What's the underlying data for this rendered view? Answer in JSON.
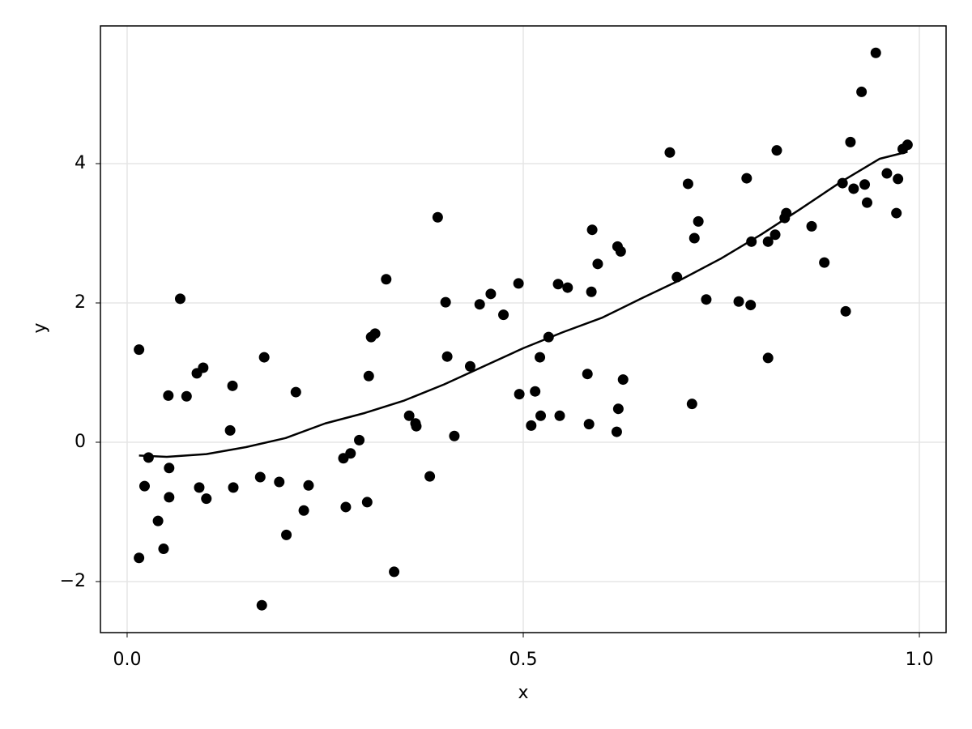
{
  "chart_data": {
    "type": "scatter",
    "xlabel": "x",
    "ylabel": "y",
    "grid": true,
    "xlim": [
      -0.0337,
      1.0337
    ],
    "ylim": [
      -2.733,
      5.977
    ],
    "xticks": [
      {
        "value": 0,
        "label": "0.0"
      },
      {
        "value": 0.5,
        "label": "0.5"
      },
      {
        "value": 1,
        "label": "1.0"
      }
    ],
    "yticks": [
      {
        "value": -2,
        "label": "−2"
      },
      0,
      2,
      4
    ],
    "series": [
      {
        "type": "scatter",
        "color": "#000000",
        "x": [
          0.015,
          0.015,
          0.022,
          0.027,
          0.039,
          0.046,
          0.052,
          0.053,
          0.053,
          0.067,
          0.075,
          0.088,
          0.091,
          0.096,
          0.1,
          0.13,
          0.133,
          0.134,
          0.168,
          0.17,
          0.173,
          0.192,
          0.201,
          0.213,
          0.223,
          0.229,
          0.273,
          0.276,
          0.282,
          0.293,
          0.303,
          0.305,
          0.308,
          0.313,
          0.327,
          0.337,
          0.356,
          0.364,
          0.365,
          0.382,
          0.392,
          0.402,
          0.404,
          0.413,
          0.433,
          0.445,
          0.459,
          0.475,
          0.494,
          0.495,
          0.51,
          0.515,
          0.521,
          0.522,
          0.532,
          0.544,
          0.546,
          0.556,
          0.581,
          0.583,
          0.586,
          0.587,
          0.594,
          0.619,
          0.62,
          0.618,
          0.623,
          0.626,
          0.685,
          0.694,
          0.708,
          0.713,
          0.716,
          0.721,
          0.731,
          0.772,
          0.782,
          0.787,
          0.788,
          0.809,
          0.809,
          0.818,
          0.82,
          0.83,
          0.832,
          0.864,
          0.88,
          0.903,
          0.907,
          0.913,
          0.917,
          0.927,
          0.931,
          0.934,
          0.945,
          0.959,
          0.971,
          0.973,
          0.979,
          0.985
        ],
        "values": [
          -1.66,
          1.33,
          -0.63,
          -0.22,
          -1.13,
          -1.53,
          0.67,
          -0.37,
          -0.79,
          2.06,
          0.66,
          0.99,
          -0.65,
          1.07,
          -0.81,
          0.17,
          0.81,
          -0.65,
          -0.5,
          -2.34,
          1.22,
          -0.57,
          -1.33,
          0.72,
          -0.98,
          -0.62,
          -0.23,
          -0.93,
          -0.16,
          0.03,
          -0.86,
          0.95,
          1.51,
          1.56,
          2.34,
          -1.86,
          0.38,
          0.27,
          0.23,
          -0.49,
          3.23,
          2.01,
          1.23,
          0.09,
          1.09,
          1.98,
          2.13,
          1.83,
          2.28,
          0.69,
          0.24,
          0.73,
          1.22,
          0.38,
          1.51,
          2.27,
          0.38,
          2.22,
          0.98,
          0.26,
          2.16,
          3.05,
          2.56,
          2.81,
          0.48,
          0.15,
          2.74,
          0.9,
          4.16,
          2.37,
          3.71,
          0.55,
          2.93,
          3.17,
          2.05,
          2.02,
          3.79,
          1.97,
          2.88,
          1.21,
          2.88,
          2.98,
          4.19,
          3.22,
          3.29,
          3.1,
          2.58,
          3.72,
          1.88,
          4.31,
          3.64,
          5.03,
          3.7,
          3.44,
          5.59,
          3.86,
          3.29,
          3.78,
          4.21,
          4.27
        ]
      },
      {
        "type": "line",
        "color": "#000000",
        "x": [
          0.015,
          0.05,
          0.1,
          0.15,
          0.2,
          0.25,
          0.3,
          0.35,
          0.4,
          0.45,
          0.5,
          0.55,
          0.6,
          0.65,
          0.7,
          0.75,
          0.8,
          0.85,
          0.9,
          0.95,
          0.985
        ],
        "values": [
          -0.19,
          -0.21,
          -0.17,
          -0.07,
          0.06,
          0.27,
          0.42,
          0.6,
          0.83,
          1.09,
          1.35,
          1.58,
          1.79,
          2.07,
          2.34,
          2.64,
          2.98,
          3.35,
          3.73,
          4.07,
          4.17
        ]
      }
    ]
  }
}
